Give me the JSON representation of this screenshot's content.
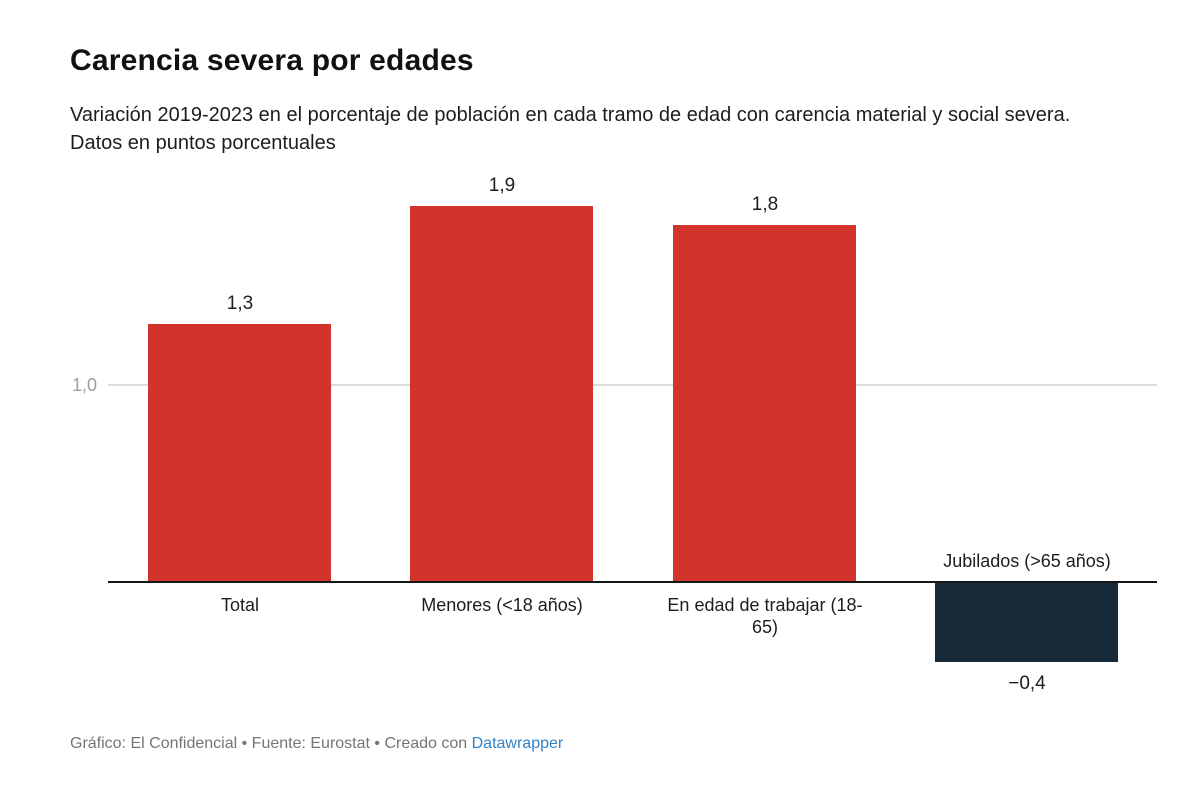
{
  "header": {
    "title": "Carencia severa por edades",
    "subtitle": "Variación 2019-2023 en el porcentaje de población en cada tramo de edad con carencia material y social severa. Datos en puntos porcentuales"
  },
  "chart_data": {
    "type": "bar",
    "title": "Carencia severa por edades",
    "subtitle": "Variación 2019-2023 en el porcentaje de población en cada tramo de edad con carencia material y social severa. Datos en puntos porcentuales",
    "categories": [
      "Total",
      "Menores (<18 años)",
      "En edad de trabajar (18-65)",
      "Jubilados (>65 años)"
    ],
    "values": [
      1.3,
      1.9,
      1.8,
      -0.4
    ],
    "value_labels": [
      "1,3",
      "1,9",
      "1,8",
      "−0,4"
    ],
    "bar_colors": [
      "#d1342d",
      "#d1342d",
      "#d1342d",
      "#172a3a"
    ],
    "xlabel": "",
    "ylabel": "",
    "units": "puntos porcentuales",
    "ylim": [
      -0.5,
      2.0
    ],
    "baseline": 0,
    "grid": "horizontal",
    "ticks": [
      {
        "value": 1.0,
        "label": "1,0"
      }
    ],
    "legend": "none"
  },
  "footer": {
    "text_prefix": "Gráfico: El Confidencial • Fuente: Eurostat • Creado con ",
    "link_label": "Datawrapper"
  },
  "colors": {
    "positive_bar": "#d1342d",
    "negative_bar": "#172a3a",
    "gridline": "#dcdcdc",
    "axis_line": "#161616",
    "tick_label": "#9e9e9e",
    "text": "#1d1d1d",
    "footer_text": "#757575",
    "link": "#3183c8"
  }
}
